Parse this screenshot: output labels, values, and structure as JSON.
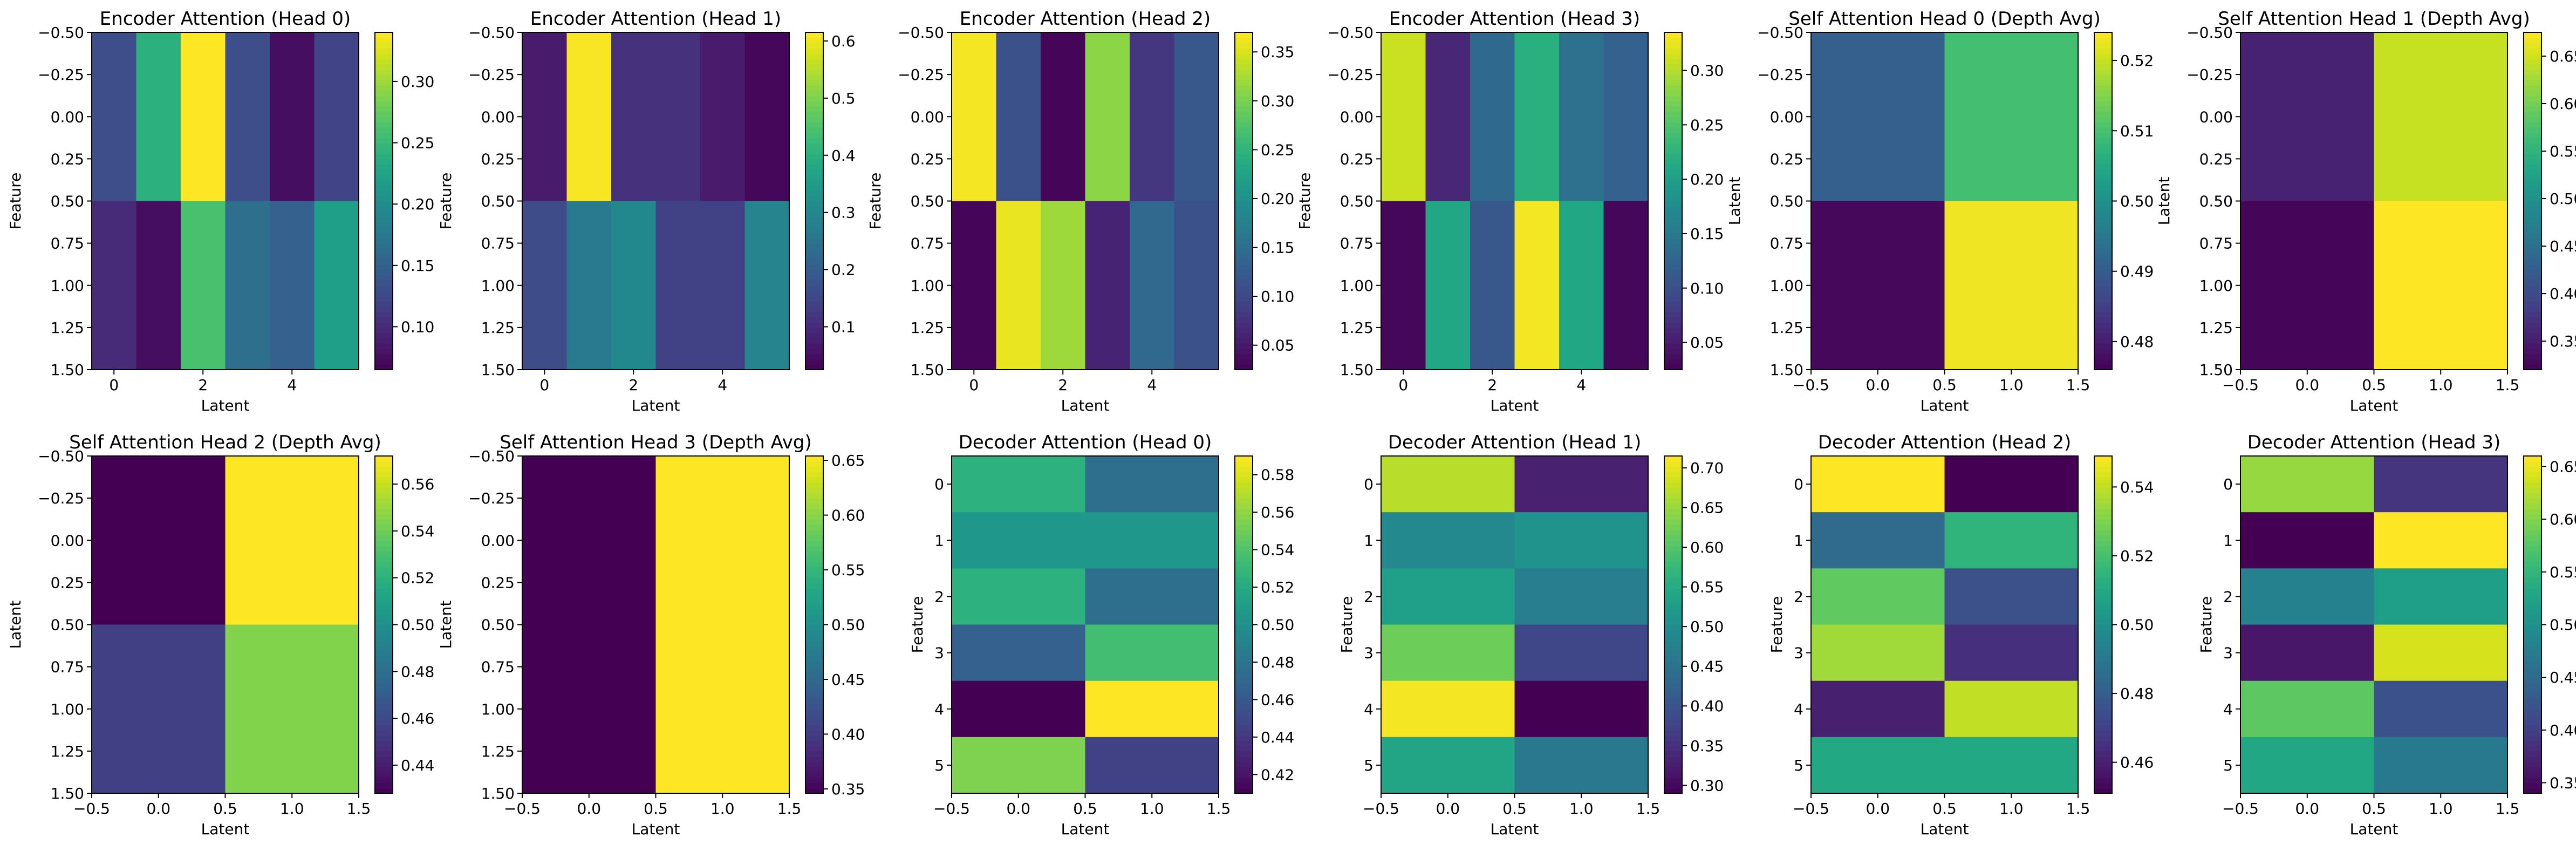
{
  "figure": {
    "title": ""
  },
  "chart_data": [
    {
      "type": "heatmap",
      "title": "Encoder Attention (Head 0)",
      "xlabel": "Latent",
      "ylabel": "Feature",
      "x_axis": {
        "ticks": [
          0,
          2,
          4
        ],
        "lim": [
          -0.5,
          5.5
        ]
      },
      "y_axis": {
        "ticks": [
          -0.5,
          -0.25,
          0.0,
          0.25,
          0.5,
          0.75,
          1.0,
          1.25,
          1.5
        ],
        "tick_labels": [
          "−0.50",
          "−0.25",
          "0.00",
          "0.25",
          "0.50",
          "0.75",
          "1.00",
          "1.25",
          "1.50"
        ],
        "lim": [
          -0.5,
          1.5
        ]
      },
      "colorbar": {
        "vmin": 0.065,
        "vmax": 0.34,
        "ticks": [
          0.1,
          0.15,
          0.2,
          0.25,
          0.3
        ],
        "tick_labels": [
          "0.10",
          "0.15",
          "0.20",
          "0.25",
          "0.30"
        ]
      },
      "values": [
        [
          0.13,
          0.24,
          0.34,
          0.13,
          0.075,
          0.12
        ],
        [
          0.1,
          0.075,
          0.26,
          0.165,
          0.15,
          0.22
        ]
      ],
      "colormap": "viridis"
    },
    {
      "type": "heatmap",
      "title": "Encoder Attention (Head 1)",
      "xlabel": "Latent",
      "ylabel": "Feature",
      "x_axis": {
        "ticks": [
          0,
          2,
          4
        ],
        "lim": [
          -0.5,
          5.5
        ]
      },
      "y_axis": {
        "ticks": [
          -0.5,
          -0.25,
          0.0,
          0.25,
          0.5,
          0.75,
          1.0,
          1.25,
          1.5
        ],
        "tick_labels": [
          "−0.50",
          "−0.25",
          "0.00",
          "0.25",
          "0.50",
          "0.75",
          "1.00",
          "1.25",
          "1.50"
        ],
        "lim": [
          -0.5,
          1.5
        ]
      },
      "colorbar": {
        "vmin": 0.025,
        "vmax": 0.615,
        "ticks": [
          0.1,
          0.2,
          0.3,
          0.4,
          0.5,
          0.6
        ],
        "tick_labels": [
          "0.1",
          "0.2",
          "0.3",
          "0.4",
          "0.5",
          "0.6"
        ]
      },
      "values": [
        [
          0.07,
          0.61,
          0.11,
          0.11,
          0.07,
          0.035
        ],
        [
          0.16,
          0.265,
          0.3,
          0.14,
          0.14,
          0.29
        ]
      ],
      "colormap": "viridis"
    },
    {
      "type": "heatmap",
      "title": "Encoder Attention (Head 2)",
      "xlabel": "Latent",
      "ylabel": "Feature",
      "x_axis": {
        "ticks": [
          0,
          2,
          4
        ],
        "lim": [
          -0.5,
          5.5
        ]
      },
      "y_axis": {
        "ticks": [
          -0.5,
          -0.25,
          0.0,
          0.25,
          0.5,
          0.75,
          1.0,
          1.25,
          1.5
        ],
        "tick_labels": [
          "−0.50",
          "−0.25",
          "0.00",
          "0.25",
          "0.50",
          "0.75",
          "1.00",
          "1.25",
          "1.50"
        ],
        "lim": [
          -0.5,
          1.5
        ]
      },
      "colorbar": {
        "vmin": 0.025,
        "vmax": 0.37,
        "ticks": [
          0.05,
          0.1,
          0.15,
          0.2,
          0.25,
          0.3,
          0.35
        ],
        "tick_labels": [
          "0.05",
          "0.10",
          "0.15",
          "0.20",
          "0.25",
          "0.30",
          "0.35"
        ]
      },
      "values": [
        [
          0.365,
          0.11,
          0.03,
          0.31,
          0.08,
          0.12
        ],
        [
          0.03,
          0.36,
          0.32,
          0.06,
          0.14,
          0.11
        ]
      ],
      "colormap": "viridis"
    },
    {
      "type": "heatmap",
      "title": "Encoder Attention (Head 3)",
      "xlabel": "Latent",
      "ylabel": "Feature",
      "x_axis": {
        "ticks": [
          0,
          2,
          4
        ],
        "lim": [
          -0.5,
          5.5
        ]
      },
      "y_axis": {
        "ticks": [
          -0.5,
          -0.25,
          0.0,
          0.25,
          0.5,
          0.75,
          1.0,
          1.25,
          1.5
        ],
        "tick_labels": [
          "−0.50",
          "−0.25",
          "0.00",
          "0.25",
          "0.50",
          "0.75",
          "1.00",
          "1.25",
          "1.50"
        ],
        "lim": [
          -0.5,
          1.5
        ]
      },
      "colorbar": {
        "vmin": 0.025,
        "vmax": 0.335,
        "ticks": [
          0.05,
          0.1,
          0.15,
          0.2,
          0.25,
          0.3
        ],
        "tick_labels": [
          "0.05",
          "0.10",
          "0.15",
          "0.20",
          "0.25",
          "0.30"
        ]
      },
      "values": [
        [
          0.31,
          0.06,
          0.13,
          0.22,
          0.14,
          0.12
        ],
        [
          0.03,
          0.21,
          0.11,
          0.33,
          0.21,
          0.03
        ]
      ],
      "colormap": "viridis"
    },
    {
      "type": "heatmap",
      "title": "Self Attention Head 0 (Depth Avg)",
      "xlabel": "Latent",
      "ylabel": "Latent",
      "x_axis": {
        "ticks": [
          -0.5,
          0.0,
          0.5,
          1.0,
          1.5
        ],
        "tick_labels": [
          "−0.5",
          "0.0",
          "0.5",
          "1.0",
          "1.5"
        ],
        "lim": [
          -0.5,
          1.5
        ]
      },
      "y_axis": {
        "ticks": [
          -0.5,
          -0.25,
          0.0,
          0.25,
          0.5,
          0.75,
          1.0,
          1.25,
          1.5
        ],
        "tick_labels": [
          "−0.50",
          "−0.25",
          "0.00",
          "0.25",
          "0.50",
          "0.75",
          "1.00",
          "1.25",
          "1.50"
        ],
        "lim": [
          -0.5,
          1.5
        ]
      },
      "colorbar": {
        "vmin": 0.476,
        "vmax": 0.524,
        "ticks": [
          0.48,
          0.49,
          0.5,
          0.51,
          0.52
        ],
        "tick_labels": [
          "0.48",
          "0.49",
          "0.50",
          "0.51",
          "0.52"
        ]
      },
      "values": [
        [
          0.4905,
          0.5095
        ],
        [
          0.477,
          0.523
        ]
      ],
      "colormap": "viridis"
    },
    {
      "type": "heatmap",
      "title": "Self Attention Head 1 (Depth Avg)",
      "xlabel": "Latent",
      "ylabel": "Latent",
      "x_axis": {
        "ticks": [
          -0.5,
          0.0,
          0.5,
          1.0,
          1.5
        ],
        "tick_labels": [
          "−0.5",
          "0.0",
          "0.5",
          "1.0",
          "1.5"
        ],
        "lim": [
          -0.5,
          1.5
        ]
      },
      "y_axis": {
        "ticks": [
          -0.5,
          -0.25,
          0.0,
          0.25,
          0.5,
          0.75,
          1.0,
          1.25,
          1.5
        ],
        "tick_labels": [
          "−0.50",
          "−0.25",
          "0.00",
          "0.25",
          "0.50",
          "0.75",
          "1.00",
          "1.25",
          "1.50"
        ],
        "lim": [
          -0.5,
          1.5
        ]
      },
      "colorbar": {
        "vmin": 0.32,
        "vmax": 0.675,
        "ticks": [
          0.35,
          0.4,
          0.45,
          0.5,
          0.55,
          0.6,
          0.65
        ],
        "tick_labels": [
          "0.35",
          "0.40",
          "0.45",
          "0.50",
          "0.55",
          "0.60",
          "0.65"
        ]
      },
      "values": [
        [
          0.355,
          0.645
        ],
        [
          0.325,
          0.675
        ]
      ],
      "colormap": "viridis"
    },
    {
      "type": "heatmap",
      "title": "Self Attention Head 2 (Depth Avg)",
      "xlabel": "Latent",
      "ylabel": "Latent",
      "x_axis": {
        "ticks": [
          -0.5,
          0.0,
          0.5,
          1.0,
          1.5
        ],
        "tick_labels": [
          "−0.5",
          "0.0",
          "0.5",
          "1.0",
          "1.5"
        ],
        "lim": [
          -0.5,
          1.5
        ]
      },
      "y_axis": {
        "ticks": [
          -0.5,
          -0.25,
          0.0,
          0.25,
          0.5,
          0.75,
          1.0,
          1.25,
          1.5
        ],
        "tick_labels": [
          "−0.50",
          "−0.25",
          "0.00",
          "0.25",
          "0.50",
          "0.75",
          "1.00",
          "1.25",
          "1.50"
        ],
        "lim": [
          -0.5,
          1.5
        ]
      },
      "colorbar": {
        "vmin": 0.428,
        "vmax": 0.572,
        "ticks": [
          0.44,
          0.46,
          0.48,
          0.5,
          0.52,
          0.54,
          0.56
        ],
        "tick_labels": [
          "0.44",
          "0.46",
          "0.48",
          "0.50",
          "0.52",
          "0.54",
          "0.56"
        ]
      },
      "values": [
        [
          0.428,
          0.572
        ],
        [
          0.455,
          0.545
        ]
      ],
      "colormap": "viridis"
    },
    {
      "type": "heatmap",
      "title": "Self Attention Head 3 (Depth Avg)",
      "xlabel": "Latent",
      "ylabel": "Latent",
      "x_axis": {
        "ticks": [
          -0.5,
          0.0,
          0.5,
          1.0,
          1.5
        ],
        "tick_labels": [
          "−0.5",
          "0.0",
          "0.5",
          "1.0",
          "1.5"
        ],
        "lim": [
          -0.5,
          1.5
        ]
      },
      "y_axis": {
        "ticks": [
          -0.5,
          -0.25,
          0.0,
          0.25,
          0.5,
          0.75,
          1.0,
          1.25,
          1.5
        ],
        "tick_labels": [
          "−0.50",
          "−0.25",
          "0.00",
          "0.25",
          "0.50",
          "0.75",
          "1.00",
          "1.25",
          "1.50"
        ],
        "lim": [
          -0.5,
          1.5
        ]
      },
      "colorbar": {
        "vmin": 0.346,
        "vmax": 0.654,
        "ticks": [
          0.35,
          0.4,
          0.45,
          0.5,
          0.55,
          0.6,
          0.65
        ],
        "tick_labels": [
          "0.35",
          "0.40",
          "0.45",
          "0.50",
          "0.55",
          "0.60",
          "0.65"
        ]
      },
      "values": [
        [
          0.346,
          0.654
        ],
        [
          0.346,
          0.654
        ]
      ],
      "colormap": "viridis"
    },
    {
      "type": "heatmap",
      "title": "Decoder Attention (Head 0)",
      "xlabel": "Latent",
      "ylabel": "Feature",
      "x_axis": {
        "ticks": [
          -0.5,
          0.0,
          0.5,
          1.0,
          1.5
        ],
        "tick_labels": [
          "−0.5",
          "0.0",
          "0.5",
          "1.0",
          "1.5"
        ],
        "lim": [
          -0.5,
          1.5
        ]
      },
      "y_axis": {
        "ticks": [
          0,
          1,
          2,
          3,
          4,
          5
        ],
        "tick_labels": [
          "0",
          "1",
          "2",
          "3",
          "4",
          "5"
        ],
        "lim": [
          -0.5,
          5.5
        ]
      },
      "colorbar": {
        "vmin": 0.41,
        "vmax": 0.59,
        "ticks": [
          0.42,
          0.44,
          0.46,
          0.48,
          0.5,
          0.52,
          0.54,
          0.56,
          0.58
        ],
        "tick_labels": [
          "0.42",
          "0.44",
          "0.46",
          "0.48",
          "0.50",
          "0.52",
          "0.54",
          "0.56",
          "0.58"
        ]
      },
      "values": [
        [
          0.525,
          0.475
        ],
        [
          0.505,
          0.505
        ],
        [
          0.525,
          0.475
        ],
        [
          0.465,
          0.535
        ],
        [
          0.41,
          0.59
        ],
        [
          0.555,
          0.445
        ]
      ],
      "colormap": "viridis"
    },
    {
      "type": "heatmap",
      "title": "Decoder Attention (Head 1)",
      "xlabel": "Latent",
      "ylabel": "Feature",
      "x_axis": {
        "ticks": [
          -0.5,
          0.0,
          0.5,
          1.0,
          1.5
        ],
        "tick_labels": [
          "−0.5",
          "0.0",
          "0.5",
          "1.0",
          "1.5"
        ],
        "lim": [
          -0.5,
          1.5
        ]
      },
      "y_axis": {
        "ticks": [
          0,
          1,
          2,
          3,
          4,
          5
        ],
        "tick_labels": [
          "0",
          "1",
          "2",
          "3",
          "4",
          "5"
        ],
        "lim": [
          -0.5,
          5.5
        ]
      },
      "colorbar": {
        "vmin": 0.29,
        "vmax": 0.715,
        "ticks": [
          0.3,
          0.35,
          0.4,
          0.45,
          0.5,
          0.55,
          0.6,
          0.65,
          0.7
        ],
        "tick_labels": [
          "0.30",
          "0.35",
          "0.40",
          "0.45",
          "0.50",
          "0.55",
          "0.60",
          "0.65",
          "0.70"
        ]
      },
      "values": [
        [
          0.67,
          0.33
        ],
        [
          0.49,
          0.51
        ],
        [
          0.53,
          0.47
        ],
        [
          0.62,
          0.38
        ],
        [
          0.71,
          0.29
        ],
        [
          0.54,
          0.46
        ]
      ],
      "colormap": "viridis"
    },
    {
      "type": "heatmap",
      "title": "Decoder Attention (Head 2)",
      "xlabel": "Latent",
      "ylabel": "Feature",
      "x_axis": {
        "ticks": [
          -0.5,
          0.0,
          0.5,
          1.0,
          1.5
        ],
        "tick_labels": [
          "−0.5",
          "0.0",
          "0.5",
          "1.0",
          "1.5"
        ],
        "lim": [
          -0.5,
          1.5
        ]
      },
      "y_axis": {
        "ticks": [
          0,
          1,
          2,
          3,
          4,
          5
        ],
        "tick_labels": [
          "0",
          "1",
          "2",
          "3",
          "4",
          "5"
        ],
        "lim": [
          -0.5,
          5.5
        ]
      },
      "colorbar": {
        "vmin": 0.451,
        "vmax": 0.549,
        "ticks": [
          0.46,
          0.48,
          0.5,
          0.52,
          0.54
        ],
        "tick_labels": [
          "0.46",
          "0.48",
          "0.50",
          "0.52",
          "0.54"
        ]
      },
      "values": [
        [
          0.549,
          0.451
        ],
        [
          0.485,
          0.515
        ],
        [
          0.525,
          0.475
        ],
        [
          0.535,
          0.465
        ],
        [
          0.46,
          0.54
        ],
        [
          0.51,
          0.51
        ]
      ],
      "colormap": "viridis"
    },
    {
      "type": "heatmap",
      "title": "Decoder Attention (Head 3)",
      "xlabel": "Latent",
      "ylabel": "Feature",
      "x_axis": {
        "ticks": [
          -0.5,
          0.0,
          0.5,
          1.0,
          1.5
        ],
        "tick_labels": [
          "−0.5",
          "0.0",
          "0.5",
          "1.0",
          "1.5"
        ],
        "lim": [
          -0.5,
          1.5
        ]
      },
      "y_axis": {
        "ticks": [
          0,
          1,
          2,
          3,
          4,
          5
        ],
        "tick_labels": [
          "0",
          "1",
          "2",
          "3",
          "4",
          "5"
        ],
        "lim": [
          -0.5,
          5.5
        ]
      },
      "colorbar": {
        "vmin": 0.34,
        "vmax": 0.66,
        "ticks": [
          0.35,
          0.4,
          0.45,
          0.5,
          0.55,
          0.6,
          0.65
        ],
        "tick_labels": [
          "0.35",
          "0.40",
          "0.45",
          "0.50",
          "0.55",
          "0.60",
          "0.65"
        ]
      },
      "values": [
        [
          0.61,
          0.39
        ],
        [
          0.34,
          0.66
        ],
        [
          0.48,
          0.52
        ],
        [
          0.36,
          0.64
        ],
        [
          0.58,
          0.42
        ],
        [
          0.53,
          0.47
        ]
      ],
      "colormap": "viridis"
    }
  ]
}
